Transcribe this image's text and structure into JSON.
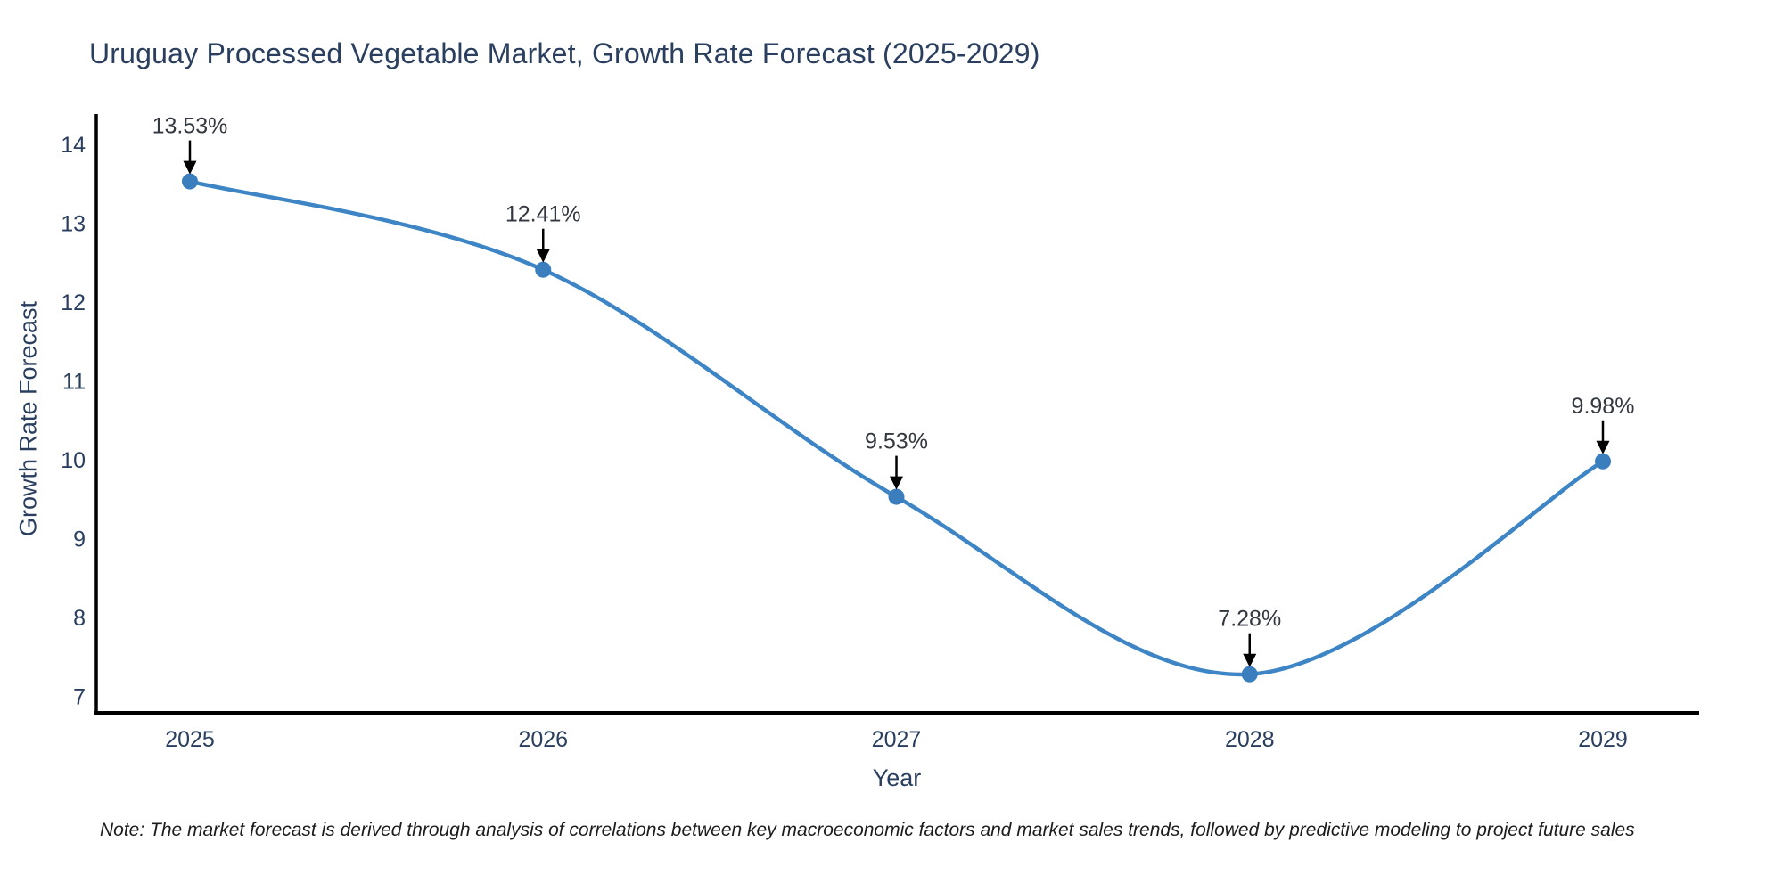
{
  "note": "Note: The market forecast is derived through analysis of correlations between key macroeconomic factors and market sales trends, followed by predictive modeling to project future sales",
  "chart_data": {
    "type": "line",
    "title": "Uruguay Processed Vegetable Market, Growth Rate Forecast (2025-2029)",
    "xlabel": "Year",
    "ylabel": "Growth Rate Forecast",
    "categories": [
      "2025",
      "2026",
      "2027",
      "2028",
      "2029"
    ],
    "series_name": "Growth Rate Forecast",
    "values": [
      13.53,
      12.41,
      9.53,
      7.28,
      9.98
    ],
    "point_labels": [
      "13.53%",
      "12.41%",
      "9.53%",
      "7.28%",
      "9.98%"
    ],
    "yticks": [
      7,
      8,
      9,
      10,
      11,
      12,
      13,
      14
    ],
    "ylim": [
      6.7,
      14.3
    ],
    "line_shape": "spline",
    "markers": true,
    "grid": false,
    "legend_position": "none",
    "colors": {
      "line": "#3d85c4",
      "marker": "#3a7ebd",
      "axis": "#000000",
      "title_font": "#2a3f5f",
      "tick_font": "#2a3f5f",
      "annotation_font": "#333740",
      "arrow": "#000000",
      "background": "#ffffff"
    }
  }
}
